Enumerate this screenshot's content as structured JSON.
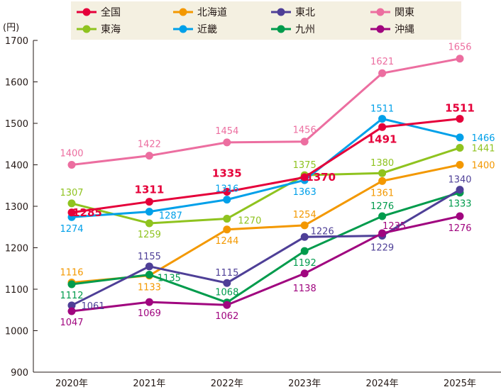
{
  "chart_data": {
    "type": "line",
    "yunit": "(円)",
    "ylim": [
      900,
      1700
    ],
    "yticks": [
      900,
      1000,
      1100,
      1200,
      1300,
      1400,
      1500,
      1600,
      1700
    ],
    "categories": [
      "2020年",
      "2021年",
      "2022年",
      "2023年",
      "2024年",
      "2025年"
    ],
    "grid": false,
    "legend_position": "top",
    "series": [
      {
        "name": "全国",
        "color": "#e5003a",
        "values": [
          1285,
          1311,
          1335,
          1370,
          1491,
          1511
        ]
      },
      {
        "name": "北海道",
        "color": "#f39800",
        "values": [
          1116,
          1133,
          1244,
          1254,
          1361,
          1400
        ]
      },
      {
        "name": "東北",
        "color": "#4e3f97",
        "values": [
          1061,
          1155,
          1115,
          1226,
          1229,
          1340
        ]
      },
      {
        "name": "関東",
        "color": "#ec6ea0",
        "values": [
          1400,
          1422,
          1454,
          1456,
          1621,
          1656
        ]
      },
      {
        "name": "東海",
        "color": "#8fc31f",
        "values": [
          1307,
          1259,
          1270,
          1375,
          1380,
          1441
        ]
      },
      {
        "name": "近畿",
        "color": "#00a0e9",
        "values": [
          1274,
          1287,
          1316,
          1363,
          1511,
          1466
        ]
      },
      {
        "name": "九州",
        "color": "#009b4c",
        "values": [
          1112,
          1135,
          1068,
          1192,
          1276,
          1333
        ]
      },
      {
        "name": "沖縄",
        "color": "#a0057f",
        "values": [
          1047,
          1069,
          1062,
          1138,
          1235,
          1276
        ]
      }
    ]
  }
}
